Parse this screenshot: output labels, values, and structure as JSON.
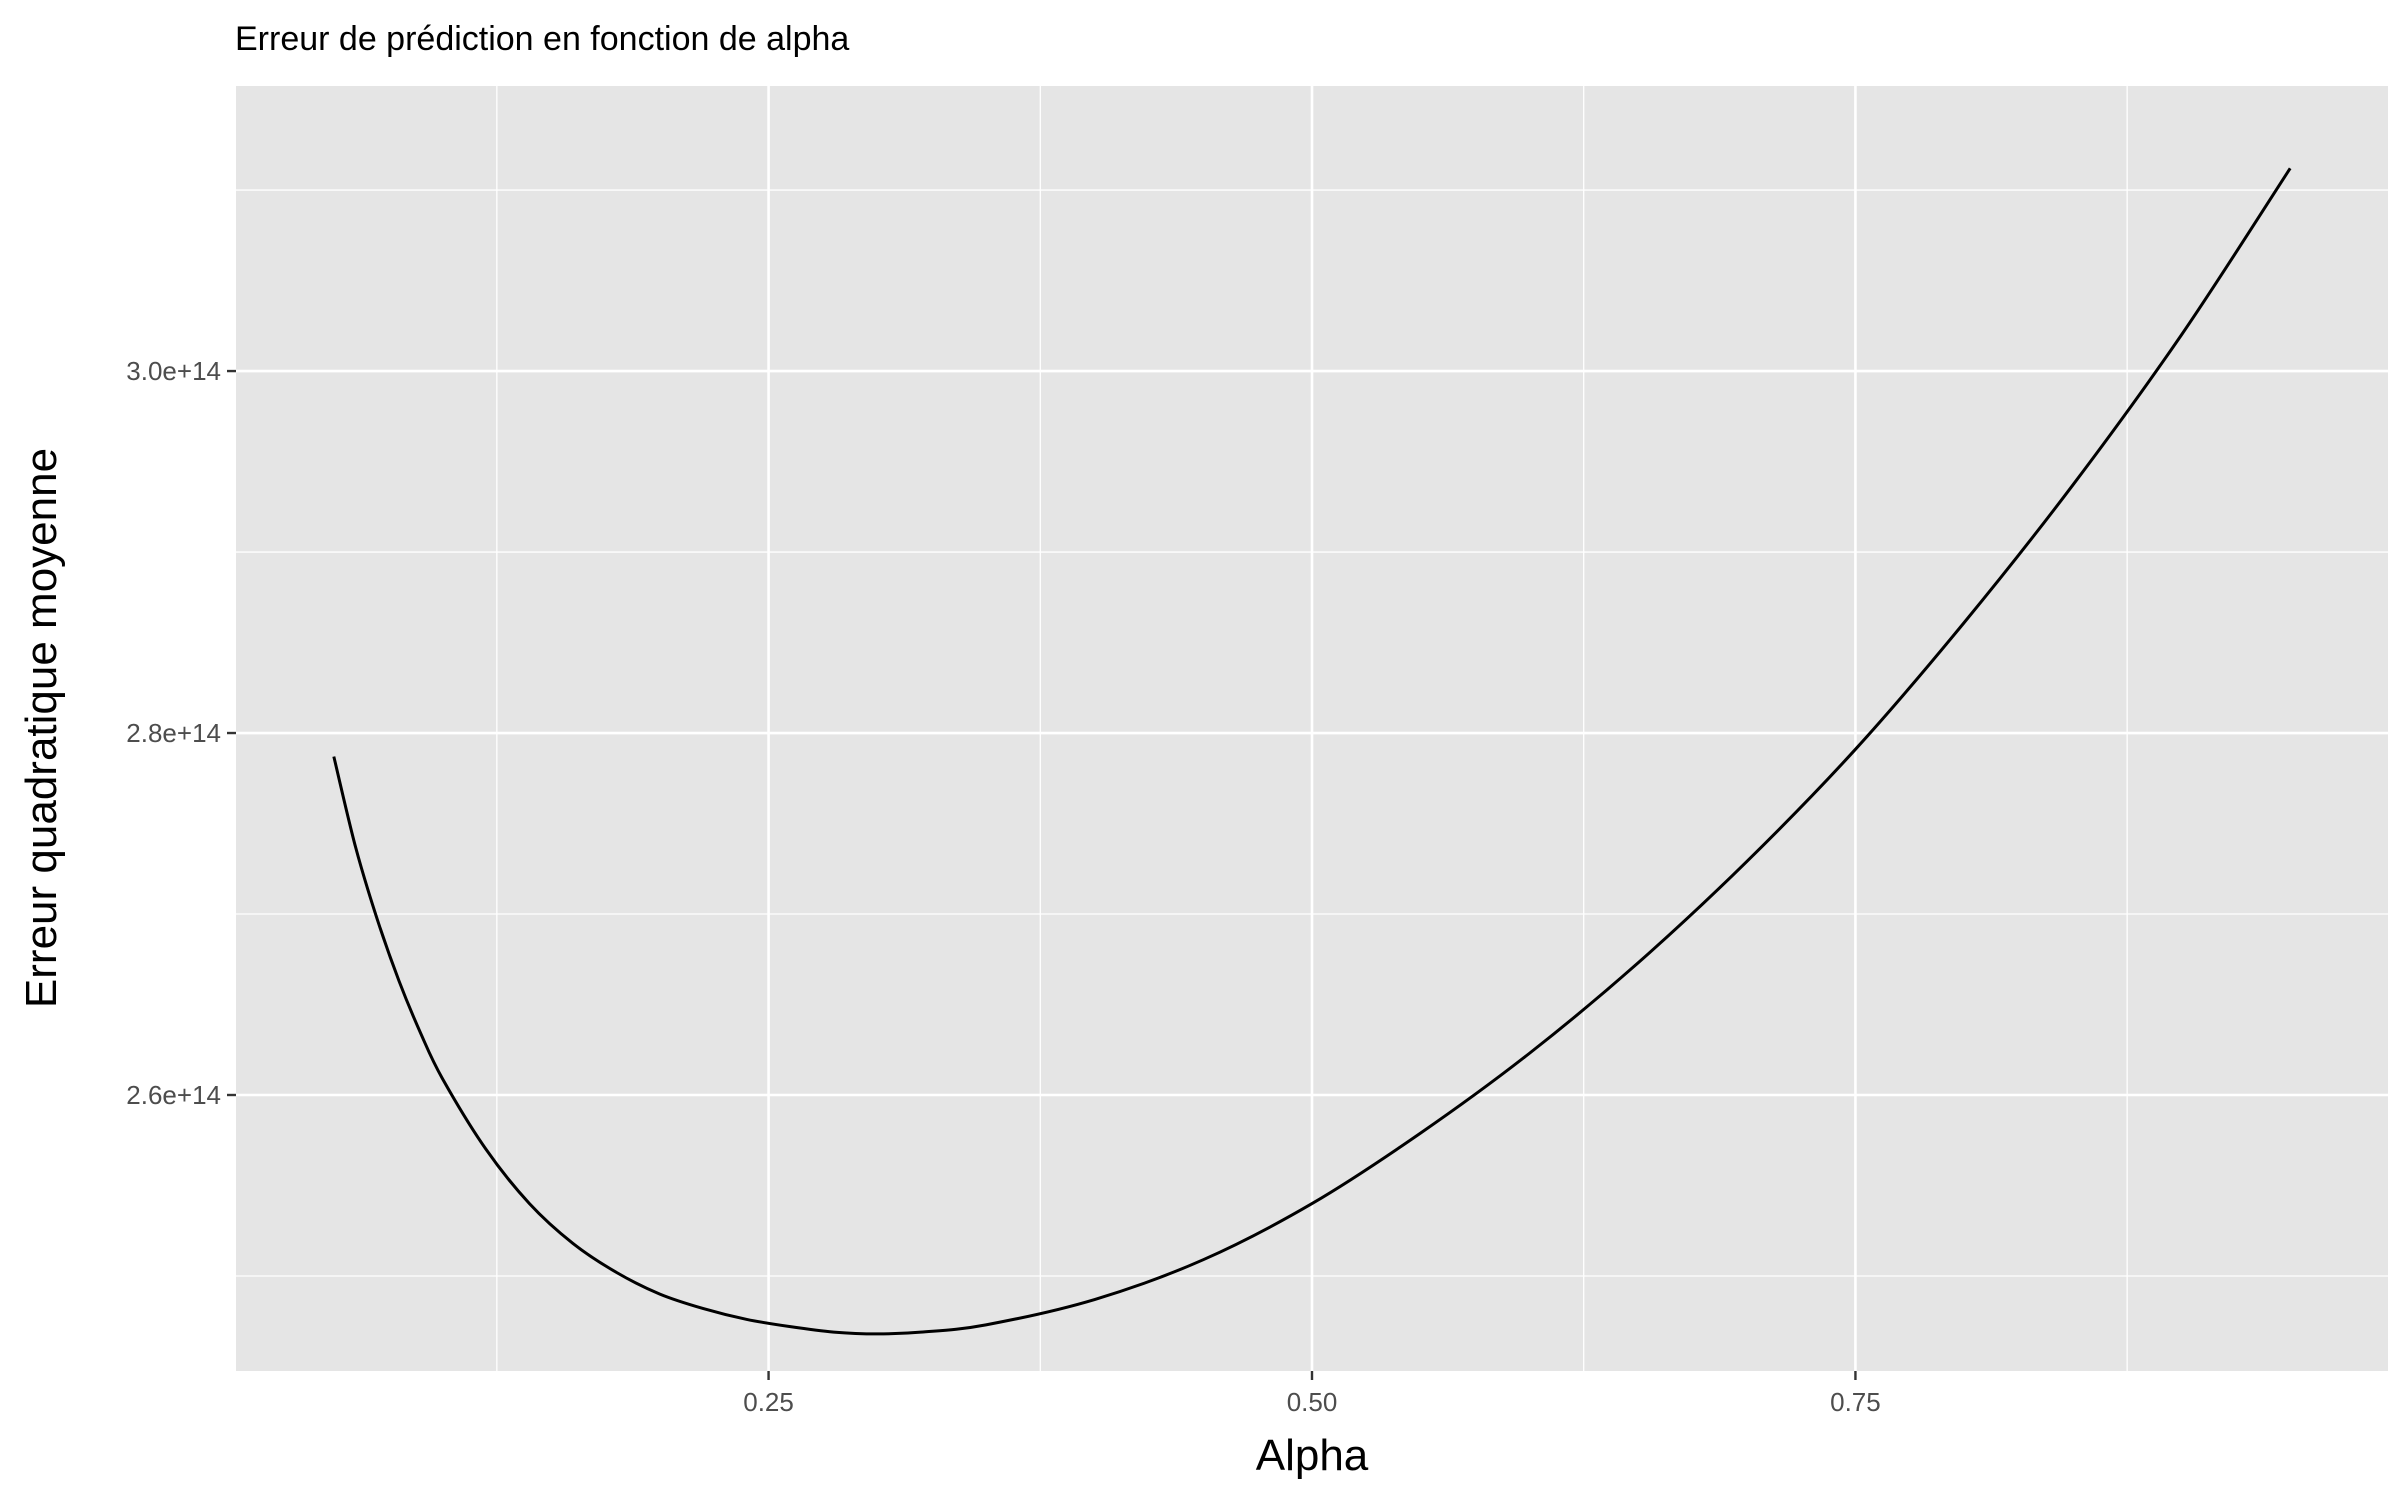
{
  "chart_data": {
    "type": "line",
    "title": "Erreur de prédiction en fonction de alpha",
    "xlabel": "Alpha",
    "ylabel": "Erreur quadratique moyenne",
    "xlim": [
      0.005,
      0.995
    ],
    "ylim": [
      244750000000000.0,
      315750000000000.0
    ],
    "x_ticks": [
      0.25,
      0.5,
      0.75
    ],
    "x_tick_labels": [
      "0.25",
      "0.50",
      "0.75"
    ],
    "y_ticks": [
      260000000000000.0,
      280000000000000.0,
      300000000000000.0
    ],
    "y_tick_labels": [
      "2.6e+14",
      "2.8e+14",
      "3.0e+14"
    ],
    "x_minor_ticks": [
      0.125,
      0.375,
      0.625,
      0.875
    ],
    "y_minor_ticks": [
      250000000000000.0,
      270000000000000.0,
      290000000000000.0,
      310000000000000.0
    ],
    "grid": true,
    "panel_background": "#e5e5e5",
    "grid_color": "#ffffff",
    "line_color": "#000000",
    "series": [
      {
        "x": [
          0.05,
          0.06,
          0.07,
          0.08,
          0.09,
          0.1,
          0.12,
          0.14,
          0.16,
          0.18,
          0.2,
          0.22,
          0.24,
          0.26,
          0.28,
          0.3,
          0.32,
          0.35,
          0.4,
          0.45,
          0.5,
          0.55,
          0.6,
          0.65,
          0.7,
          0.75,
          0.8,
          0.85,
          0.9,
          0.95
        ],
        "y": [
          278700000000000.0,
          273700000000000.0,
          269700000000000.0,
          266300000000000.0,
          263400000000000.0,
          260900000000000.0,
          257000000000000.0,
          254000000000000.0,
          251800000000000.0,
          250200000000000.0,
          249000000000000.0,
          248200000000000.0,
          247600000000000.0,
          247200000000000.0,
          246900000000000.0,
          246800000000000.0,
          246900000000000.0,
          247300000000000.0,
          248700000000000.0,
          250900000000000.0,
          254000000000000.0,
          257900000000000.0,
          262300000000000.0,
          267300000000000.0,
          272900000000000.0,
          279100000000000.0,
          286100000000000.0,
          293700000000000.0,
          302000000000000.0,
          311200000000000.0
        ]
      }
    ]
  }
}
